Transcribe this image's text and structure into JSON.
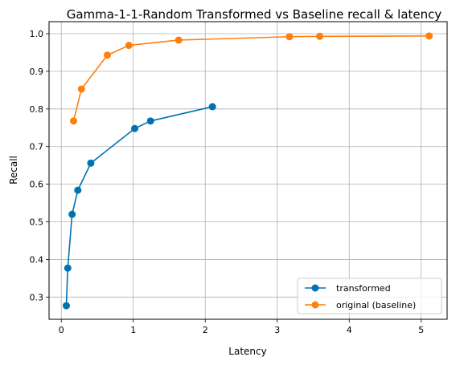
{
  "chart_data": {
    "type": "line",
    "title": "Gamma-1-1-Random Transformed vs Baseline recall & latency",
    "xlabel": "Latency",
    "ylabel": "Recall",
    "xlim": [
      -0.17,
      5.36
    ],
    "ylim": [
      0.241,
      1.032
    ],
    "xticks": [
      0,
      1,
      2,
      3,
      4,
      5
    ],
    "xtick_labels": [
      "0",
      "1",
      "2",
      "3",
      "4",
      "5"
    ],
    "yticks": [
      0.3,
      0.4,
      0.5,
      0.6,
      0.7,
      0.8,
      0.9,
      1.0
    ],
    "ytick_labels": [
      "0.3",
      "0.4",
      "0.5",
      "0.6",
      "0.7",
      "0.8",
      "0.9",
      "1.0"
    ],
    "grid": true,
    "legend_position": "lower-right",
    "series": [
      {
        "name": "transformed",
        "color": "#0072B2",
        "marker": "circle",
        "x": [
          0.07,
          0.09,
          0.15,
          0.23,
          0.41,
          1.02,
          1.24,
          2.1
        ],
        "y": [
          0.277,
          0.377,
          0.52,
          0.584,
          0.656,
          0.748,
          0.768,
          0.806
        ]
      },
      {
        "name": "original (baseline)",
        "color": "#ff7f0e",
        "marker": "circle",
        "x": [
          0.17,
          0.28,
          0.64,
          0.94,
          1.63,
          3.17,
          3.59,
          5.11
        ],
        "y": [
          0.768,
          0.853,
          0.943,
          0.969,
          0.983,
          0.992,
          0.993,
          0.994
        ]
      }
    ]
  }
}
